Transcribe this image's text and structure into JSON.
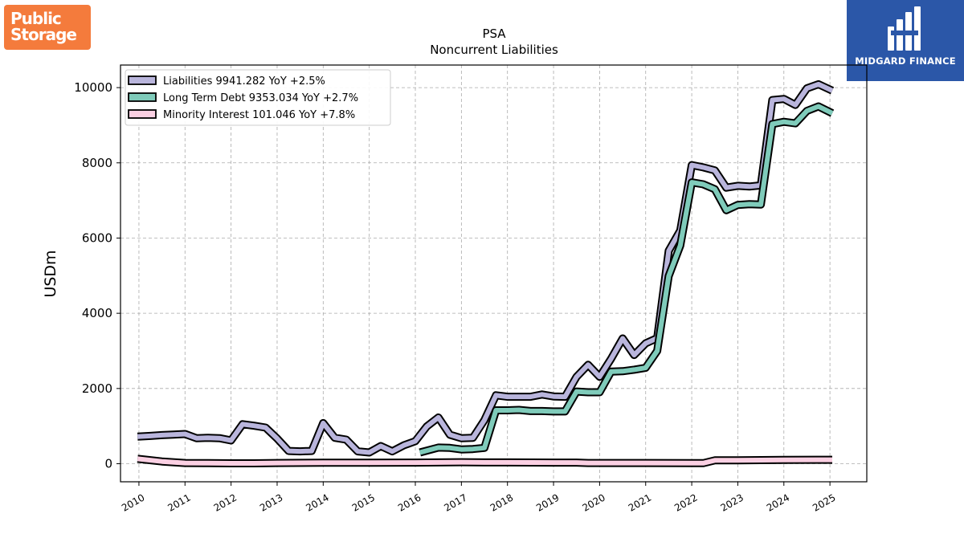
{
  "brand": {
    "left_logo_line1": "Public",
    "left_logo_line2": "Storage",
    "left_logo_color": "#f47b3c",
    "right_logo_text": "MIDGARD FINANCE",
    "right_logo_color": "#2b57a8"
  },
  "chart_data": {
    "type": "line",
    "title": "PSA",
    "subtitle": "Noncurrent  Liabilities",
    "xlabel": "",
    "ylabel": "USDm",
    "xlim": [
      2009.6,
      2025.8
    ],
    "ylim": [
      -480,
      10600
    ],
    "yticks": [
      0,
      2000,
      4000,
      6000,
      8000,
      10000
    ],
    "xticks": [
      "2010",
      "2011",
      "2012",
      "2013",
      "2014",
      "2015",
      "2016",
      "2017",
      "2018",
      "2019",
      "2020",
      "2021",
      "2022",
      "2023",
      "2024",
      "2025"
    ],
    "grid": true,
    "legend_position": "top-left",
    "series": [
      {
        "name": "Liabilities  9941.282 YoY +2.5%",
        "color": "#b9b5dc",
        "points": [
          [
            2009.97,
            720
          ],
          [
            2010.25,
            740
          ],
          [
            2010.5,
            760
          ],
          [
            2010.75,
            775
          ],
          [
            2011.0,
            790
          ],
          [
            2011.25,
            680
          ],
          [
            2011.5,
            690
          ],
          [
            2011.75,
            680
          ],
          [
            2012.0,
            620
          ],
          [
            2012.25,
            1050
          ],
          [
            2012.5,
            1010
          ],
          [
            2012.75,
            960
          ],
          [
            2013.0,
            670
          ],
          [
            2013.25,
            340
          ],
          [
            2013.5,
            330
          ],
          [
            2013.75,
            340
          ],
          [
            2014.0,
            1080
          ],
          [
            2014.25,
            690
          ],
          [
            2014.5,
            640
          ],
          [
            2014.75,
            330
          ],
          [
            2015.0,
            300
          ],
          [
            2015.25,
            470
          ],
          [
            2015.5,
            330
          ],
          [
            2015.75,
            490
          ],
          [
            2016.0,
            600
          ],
          [
            2016.25,
            990
          ],
          [
            2016.5,
            1230
          ],
          [
            2016.75,
            770
          ],
          [
            2017.0,
            680
          ],
          [
            2017.25,
            690
          ],
          [
            2017.5,
            1160
          ],
          [
            2017.75,
            1820
          ],
          [
            2018.0,
            1780
          ],
          [
            2018.25,
            1780
          ],
          [
            2018.5,
            1780
          ],
          [
            2018.75,
            1840
          ],
          [
            2019.0,
            1790
          ],
          [
            2019.25,
            1780
          ],
          [
            2019.5,
            2310
          ],
          [
            2019.75,
            2630
          ],
          [
            2020.0,
            2310
          ],
          [
            2020.25,
            2790
          ],
          [
            2020.5,
            3330
          ],
          [
            2020.75,
            2890
          ],
          [
            2021.0,
            3200
          ],
          [
            2021.25,
            3340
          ],
          [
            2021.5,
            5660
          ],
          [
            2021.75,
            6200
          ],
          [
            2022.0,
            7940
          ],
          [
            2022.25,
            7880
          ],
          [
            2022.5,
            7800
          ],
          [
            2022.75,
            7340
          ],
          [
            2023.0,
            7390
          ],
          [
            2023.25,
            7370
          ],
          [
            2023.5,
            7400
          ],
          [
            2023.75,
            9670
          ],
          [
            2024.0,
            9700
          ],
          [
            2024.25,
            9540
          ],
          [
            2024.5,
            9980
          ],
          [
            2024.75,
            10090
          ],
          [
            2025.05,
            9920
          ]
        ]
      },
      {
        "name": "Long Term Debt  9353.034 YoY +2.7%",
        "color": "#7fcbba",
        "points": [
          [
            2016.1,
            300
          ],
          [
            2016.5,
            430
          ],
          [
            2016.75,
            420
          ],
          [
            2017.0,
            380
          ],
          [
            2017.25,
            390
          ],
          [
            2017.5,
            420
          ],
          [
            2017.75,
            1420
          ],
          [
            2018.0,
            1420
          ],
          [
            2018.25,
            1430
          ],
          [
            2018.5,
            1400
          ],
          [
            2018.75,
            1400
          ],
          [
            2019.0,
            1390
          ],
          [
            2019.25,
            1390
          ],
          [
            2019.5,
            1920
          ],
          [
            2019.75,
            1900
          ],
          [
            2020.0,
            1900
          ],
          [
            2020.25,
            2450
          ],
          [
            2020.5,
            2460
          ],
          [
            2020.75,
            2500
          ],
          [
            2021.0,
            2550
          ],
          [
            2021.25,
            3000
          ],
          [
            2021.5,
            4990
          ],
          [
            2021.75,
            5800
          ],
          [
            2022.0,
            7480
          ],
          [
            2022.25,
            7430
          ],
          [
            2022.5,
            7300
          ],
          [
            2022.75,
            6740
          ],
          [
            2023.0,
            6880
          ],
          [
            2023.25,
            6900
          ],
          [
            2023.5,
            6890
          ],
          [
            2023.75,
            9030
          ],
          [
            2024.0,
            9090
          ],
          [
            2024.25,
            9050
          ],
          [
            2024.5,
            9380
          ],
          [
            2024.75,
            9500
          ],
          [
            2025.05,
            9320
          ]
        ]
      },
      {
        "name": "Minority Interest  101.046 YoY +7.8%",
        "color": "#fbd0e3",
        "points": [
          [
            2009.97,
            130
          ],
          [
            2010.5,
            60
          ],
          [
            2011.0,
            20
          ],
          [
            2011.5,
            15
          ],
          [
            2012.0,
            10
          ],
          [
            2012.5,
            10
          ],
          [
            2013.0,
            20
          ],
          [
            2014.0,
            25
          ],
          [
            2015.0,
            25
          ],
          [
            2016.0,
            30
          ],
          [
            2017.0,
            40
          ],
          [
            2017.5,
            35
          ],
          [
            2018.0,
            35
          ],
          [
            2019.0,
            30
          ],
          [
            2019.5,
            30
          ],
          [
            2019.75,
            20
          ],
          [
            2020.0,
            20
          ],
          [
            2021.0,
            20
          ],
          [
            2022.0,
            15
          ],
          [
            2022.25,
            15
          ],
          [
            2022.5,
            90
          ],
          [
            2023.0,
            90
          ],
          [
            2024.0,
            100
          ],
          [
            2025.05,
            105
          ]
        ]
      }
    ]
  }
}
